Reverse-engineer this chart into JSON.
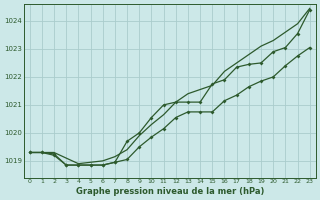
{
  "title": "Graphe pression niveau de la mer (hPa)",
  "bg_color": "#cce8e8",
  "grid_color": "#aacccc",
  "line_color": "#2d5a2d",
  "xlim": [
    -0.5,
    23.5
  ],
  "ylim": [
    1018.4,
    1024.6
  ],
  "yticks": [
    1019,
    1020,
    1021,
    1022,
    1023,
    1024
  ],
  "xticks": [
    0,
    1,
    2,
    3,
    4,
    5,
    6,
    7,
    8,
    9,
    10,
    11,
    12,
    13,
    14,
    15,
    16,
    17,
    18,
    19,
    20,
    21,
    22,
    23
  ],
  "series_smooth": [
    1019.3,
    1019.3,
    1019.3,
    1019.1,
    1018.9,
    1018.95,
    1019.0,
    1019.15,
    1019.4,
    1019.9,
    1020.3,
    1020.65,
    1021.1,
    1021.4,
    1021.55,
    1021.7,
    1022.2,
    1022.5,
    1022.8,
    1023.1,
    1023.3,
    1023.6,
    1023.9,
    1024.45
  ],
  "series_markers": [
    1019.3,
    1019.3,
    1019.25,
    1018.85,
    1018.85,
    1018.85,
    1018.85,
    1018.95,
    1019.05,
    1019.5,
    1019.85,
    1020.15,
    1020.55,
    1020.75,
    1020.75,
    1020.75,
    1021.15,
    1021.35,
    1021.65,
    1021.85,
    1022.0,
    1022.4,
    1022.75,
    1023.05
  ],
  "series_bottom": [
    1019.3,
    1019.3,
    1019.2,
    1018.85,
    1018.85,
    1018.85,
    1018.85,
    1018.95,
    1019.7,
    1020.0,
    1020.55,
    1021.0,
    1021.1,
    1021.1,
    1021.1,
    1021.75,
    1021.9,
    1022.35,
    1022.45,
    1022.5,
    1022.9,
    1023.05,
    1023.55,
    1024.4
  ],
  "figsize": [
    3.2,
    2.0
  ],
  "dpi": 100
}
